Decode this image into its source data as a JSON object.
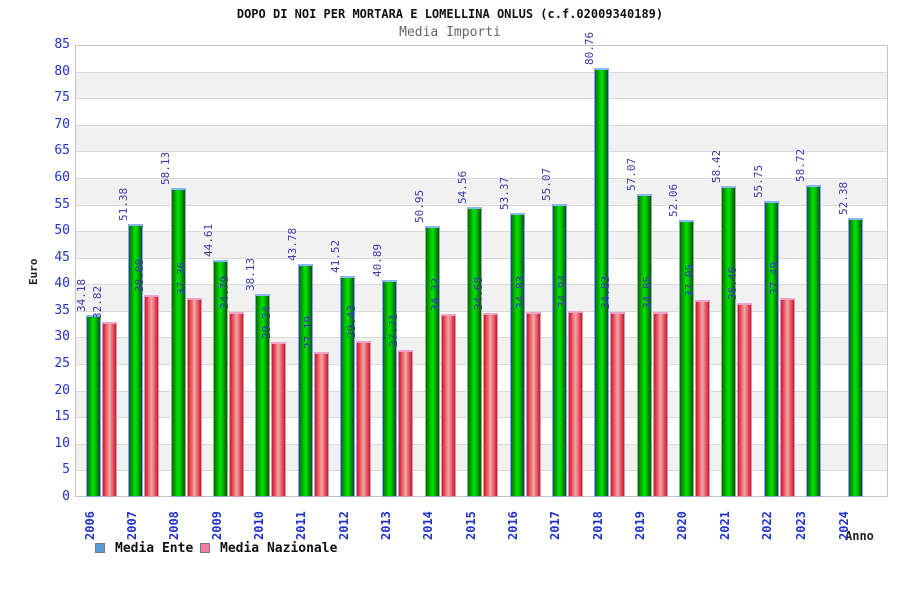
{
  "title": "DOPO DI NOI PER MORTARA E LOMELLINA ONLUS (c.f.02009340189)",
  "subtitle": "Media Importi",
  "axes": {
    "y_label": "Euro",
    "x_label": "Anno"
  },
  "legend": {
    "position": "bottom-left",
    "items": [
      {
        "label": "Media Ente",
        "swatch_color": "#5b9bd5"
      },
      {
        "label": "Media Nazionale",
        "swatch_color": "#ef7fa7"
      }
    ]
  },
  "colors": {
    "bar_green": "#00c800",
    "bar_red": "#e84a58",
    "axis_text_blue": "#2233cc",
    "value_label_blue": "#3a3aad",
    "band_gray": "#f1f1f1",
    "gridline_gray": "#d9d9d9"
  },
  "chart_data": {
    "type": "bar",
    "title": "DOPO DI NOI PER MORTARA E LOMELLINA ONLUS (c.f.02009340189)",
    "subtitle": "Media Importi",
    "xlabel": "Anno",
    "ylabel": "Euro",
    "ylim": [
      0,
      85
    ],
    "ytick_step": 5,
    "y_ticks": [
      0,
      5,
      10,
      15,
      20,
      25,
      30,
      35,
      40,
      45,
      50,
      55,
      60,
      65,
      70,
      75,
      80,
      85
    ],
    "grid": true,
    "alternating_bands": true,
    "value_labels": "rotated 90deg above each bar, 2 decimals",
    "legend_position": "bottom-left",
    "categories": [
      "2006",
      "2007",
      "2008",
      "2009",
      "2010",
      "2011",
      "2012",
      "2013",
      "2014",
      "2015",
      "2016",
      "2017",
      "2018",
      "2019",
      "2020",
      "2021",
      "2022",
      "2023",
      "2024"
    ],
    "series": [
      {
        "name": "Media Ente",
        "values": [
          34.18,
          51.38,
          58.13,
          44.61,
          38.13,
          43.78,
          41.52,
          40.89,
          50.95,
          54.56,
          53.37,
          55.07,
          80.76,
          57.07,
          52.06,
          58.42,
          55.75,
          58.72,
          52.38
        ]
      },
      {
        "name": "Media Nazionale",
        "values": [
          32.82,
          38.0,
          37.36,
          34.79,
          29.24,
          27.19,
          29.43,
          27.71,
          34.32,
          34.68,
          34.83,
          34.94,
          34.83,
          34.85,
          37.05,
          36.46,
          37.49,
          null,
          null
        ]
      }
    ]
  }
}
